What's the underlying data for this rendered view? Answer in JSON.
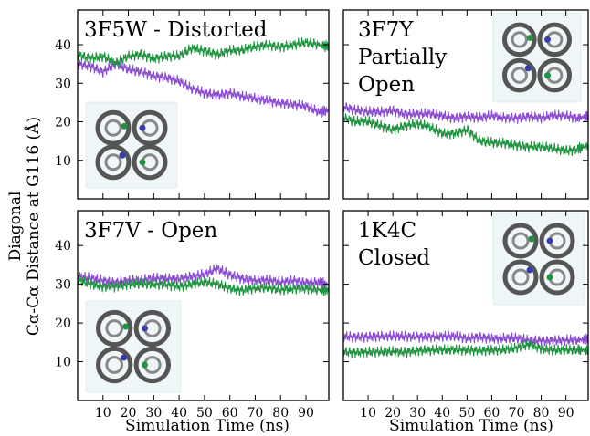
{
  "chart_data": {
    "type": "line",
    "ylabel_line1": "Diagonal",
    "ylabel_line2": "Cα-Cα Distance at G116 (Å)",
    "xlabel": "Simulation Time (ns)",
    "xlim": [
      0,
      99
    ],
    "ylim": [
      0,
      49
    ],
    "xticks": [
      10,
      20,
      30,
      40,
      50,
      60,
      70,
      80,
      90
    ],
    "yticks": [
      10,
      20,
      30,
      40
    ],
    "colors": {
      "purple": "#8a4bd0",
      "green": "#1f9340"
    },
    "panels": [
      {
        "label_lines": [
          "3F5W - Distorted"
        ],
        "series": [
          {
            "color": "purple",
            "x": [
              0,
              5,
              10,
              15,
              20,
              25,
              30,
              35,
              40,
              45,
              50,
              55,
              60,
              65,
              70,
              75,
              80,
              85,
              90,
              95,
              99
            ],
            "values": [
              35,
              34.5,
              33,
              35,
              33.5,
              33,
              32,
              31.5,
              30.5,
              28.5,
              27.5,
              27,
              27.5,
              26.5,
              26,
              25.5,
              25,
              24.5,
              24,
              22.5,
              23
            ]
          },
          {
            "color": "green",
            "x": [
              0,
              5,
              10,
              15,
              20,
              25,
              30,
              35,
              40,
              45,
              50,
              55,
              60,
              65,
              70,
              75,
              80,
              85,
              90,
              95,
              99
            ],
            "values": [
              37.5,
              36.5,
              37,
              35,
              37,
              37.5,
              36.5,
              37,
              37,
              39,
              38.5,
              37.5,
              38.5,
              38.5,
              39.5,
              40,
              39.5,
              40,
              40.5,
              40,
              39.5
            ]
          }
        ]
      },
      {
        "label_lines": [
          "3F7Y",
          "Partially",
          "Open"
        ],
        "series": [
          {
            "color": "purple",
            "x": [
              0,
              5,
              10,
              15,
              20,
              25,
              30,
              35,
              40,
              45,
              50,
              55,
              60,
              65,
              70,
              75,
              80,
              85,
              90,
              95,
              99
            ],
            "values": [
              24,
              23,
              22.5,
              22.5,
              23,
              22,
              22,
              22,
              21.5,
              21,
              21.5,
              21,
              21.5,
              21,
              21,
              21.5,
              21,
              21.5,
              21.5,
              21,
              21.5
            ]
          },
          {
            "color": "green",
            "x": [
              0,
              5,
              10,
              15,
              20,
              25,
              30,
              35,
              40,
              45,
              50,
              55,
              60,
              65,
              70,
              75,
              80,
              85,
              90,
              95,
              99
            ],
            "values": [
              21,
              20,
              20,
              19,
              18,
              19,
              19.5,
              18.5,
              17,
              17,
              18,
              15,
              14.5,
              14.5,
              14,
              13.5,
              13.5,
              13,
              12.5,
              13,
              14
            ]
          }
        ]
      },
      {
        "label_lines": [
          "3F7V - Open"
        ],
        "series": [
          {
            "color": "purple",
            "x": [
              0,
              5,
              10,
              15,
              20,
              25,
              30,
              35,
              40,
              45,
              50,
              55,
              60,
              65,
              70,
              75,
              80,
              85,
              90,
              95,
              99
            ],
            "values": [
              32,
              31.5,
              31,
              30.5,
              31,
              31,
              31.5,
              31.5,
              31.5,
              32,
              32.5,
              34,
              32.5,
              31.5,
              31,
              31,
              30.5,
              31,
              30.5,
              30.5,
              30
            ]
          },
          {
            "color": "green",
            "x": [
              0,
              5,
              10,
              15,
              20,
              25,
              30,
              35,
              40,
              45,
              50,
              55,
              60,
              65,
              70,
              75,
              80,
              85,
              90,
              95,
              99
            ],
            "values": [
              31,
              30,
              29.5,
              29.5,
              30,
              30,
              30,
              30,
              29.5,
              30,
              30.5,
              30,
              29,
              28.5,
              29,
              29,
              28.5,
              29,
              29,
              28.5,
              28.5
            ]
          }
        ]
      },
      {
        "label_lines": [
          "1K4C",
          "Closed"
        ],
        "series": [
          {
            "color": "purple",
            "x": [
              0,
              5,
              10,
              15,
              20,
              25,
              30,
              35,
              40,
              45,
              50,
              55,
              60,
              65,
              70,
              75,
              80,
              85,
              90,
              95,
              99
            ],
            "values": [
              16.5,
              16.5,
              16.5,
              16.5,
              16.5,
              16.5,
              16.5,
              16.5,
              16.5,
              16.5,
              16,
              16.5,
              16,
              16,
              16,
              15.5,
              15.5,
              15.5,
              15.5,
              15.5,
              16
            ]
          },
          {
            "color": "green",
            "x": [
              0,
              5,
              10,
              15,
              20,
              25,
              30,
              35,
              40,
              45,
              50,
              55,
              60,
              65,
              70,
              75,
              80,
              85,
              90,
              95,
              99
            ],
            "values": [
              12.5,
              12.5,
              12.5,
              12.5,
              12.5,
              12.5,
              13,
              13,
              13,
              13,
              13,
              13,
              13,
              13,
              13.5,
              14.5,
              13.5,
              13,
              13,
              13,
              13
            ]
          }
        ]
      }
    ]
  }
}
